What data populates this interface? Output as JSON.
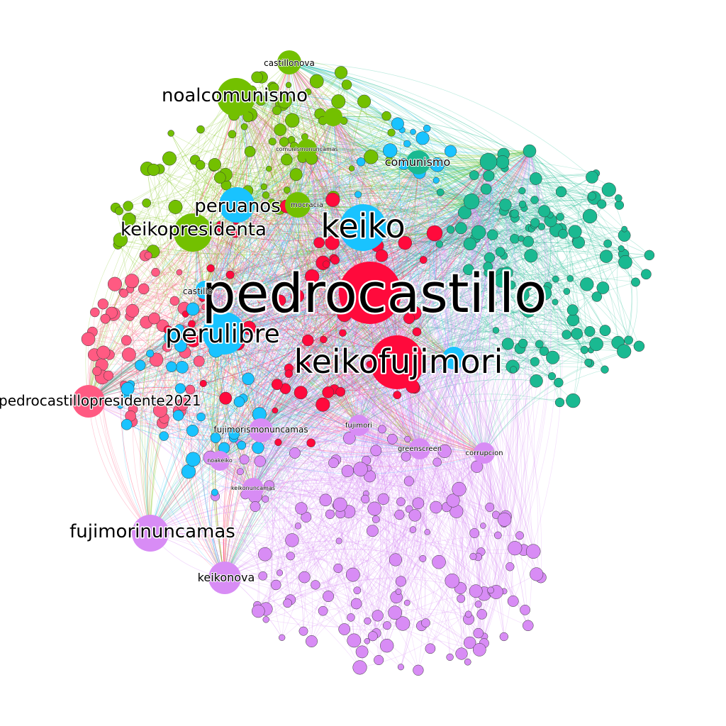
{
  "graph": {
    "communities": {
      "castillo": "#ff0a3c",
      "keiko": "#19c3ff",
      "noalcomunismo": "#73c000",
      "comunismo": "#1ab991",
      "fujimorinuncamas": "#d88cf5",
      "castillopresidente": "#ff5a82"
    },
    "labels": {
      "pedrocastillo": "pedrocastillo",
      "keikofujimori": "keikofujimori",
      "keiko": "keiko",
      "perulibre": "perulibre",
      "keikopresidenta": "keikopresidenta",
      "peruanos": "peruanos",
      "noalcomunismo": "noalcomunismo",
      "castillonova": "castillonova",
      "comunismo": "comunismo",
      "pedrocastillopresidente2021": "pedrocastillopresidente2021",
      "fujimorinuncamas": "fujimorinuncamas",
      "keikonova": "keikonova",
      "fujimorismonuncamas": "fujimorismonuncamas",
      "fujimori": "fujimori",
      "greenscreen": "greenscreen",
      "corrupcion": "corrupcion",
      "noakeiko": "noakeiko",
      "keikonuncamas": "keikonuncamas",
      "comunismonuncamas": "comunismonuncamas",
      "democracia": "mocracia",
      "castillo": "castillo"
    }
  }
}
